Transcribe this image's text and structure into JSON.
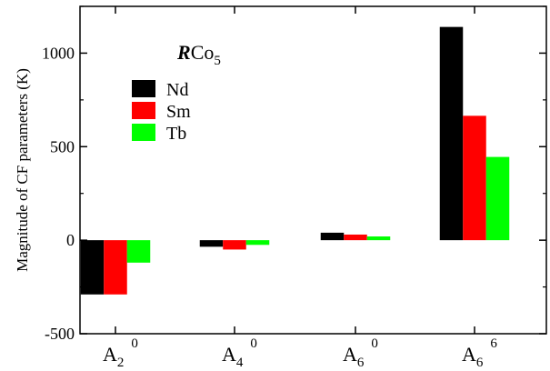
{
  "chart_data": {
    "type": "bar",
    "ylabel": "Magnitude of CF parameters (K)",
    "ylim": [
      -500,
      1250
    ],
    "yticks": [
      -500,
      0,
      500,
      1000
    ],
    "categories": [
      {
        "base": "A",
        "sub": "2",
        "sup": "0"
      },
      {
        "base": "A",
        "sub": "4",
        "sup": "0"
      },
      {
        "base": "A",
        "sub": "6",
        "sup": "0"
      },
      {
        "base": "A",
        "sub": "6",
        "sup": "6"
      }
    ],
    "legend": {
      "title_bold": "R",
      "title_main": "Co",
      "title_sub": "5",
      "position": "top-left"
    },
    "series": [
      {
        "name": "Nd",
        "color": "#000000",
        "values": [
          -290,
          -35,
          40,
          1140
        ]
      },
      {
        "name": "Sm",
        "color": "#ff0000",
        "values": [
          -290,
          -50,
          30,
          665
        ]
      },
      {
        "name": "Tb",
        "color": "#00ff00",
        "values": [
          -120,
          -25,
          20,
          445
        ]
      }
    ],
    "grid": false
  }
}
